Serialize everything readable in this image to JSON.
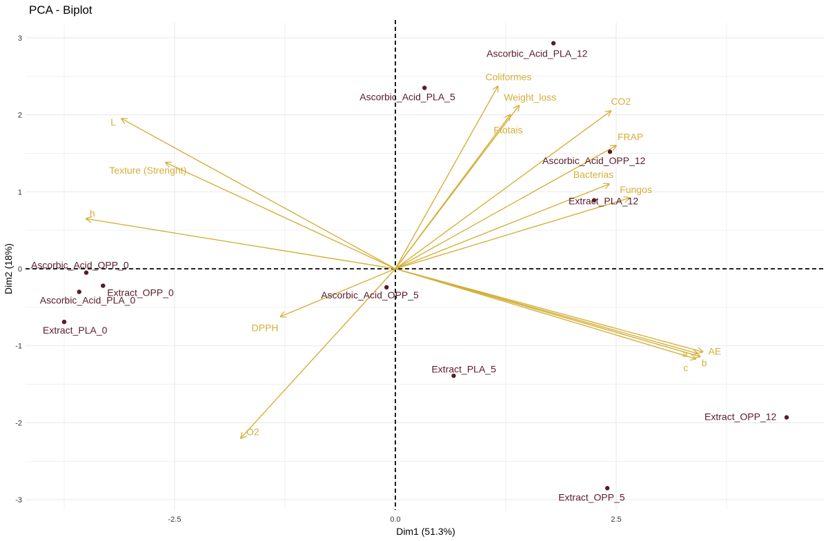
{
  "chart_data": {
    "type": "scatter",
    "title": "PCA - Biplot",
    "xlabel": "Dim1 (51.3%)",
    "ylabel": "Dim2 (18%)",
    "xlim": [
      -4.2,
      4.8
    ],
    "ylim": [
      -3.25,
      3.25
    ],
    "x_ticks": [
      -2.5,
      0,
      2.5
    ],
    "x_tick_labels": [
      "-2.5",
      "0.0",
      "2.5"
    ],
    "y_ticks": [
      -3,
      -2,
      -1,
      0,
      1,
      2,
      3
    ],
    "y_tick_labels": [
      "-3",
      "-2",
      "-1",
      "0",
      "1",
      "2",
      "3"
    ],
    "grid": true,
    "colors": {
      "individuals": "#5a1a2a",
      "variables": "#d4af37",
      "grid": "#ebebeb",
      "reference_lines": "#000000"
    },
    "individuals": [
      {
        "name": "Ascorbic_Acid_PLA_12",
        "x": 1.79,
        "y": 2.93
      },
      {
        "name": "Ascorbic_Acid_PLA_5",
        "x": 0.33,
        "y": 2.35
      },
      {
        "name": "Ascorbic_Acid_OPP_12",
        "x": 2.43,
        "y": 1.52
      },
      {
        "name": "Extract_PLA_12",
        "x": 2.25,
        "y": 0.89
      },
      {
        "name": "Ascorbic_Acid_OPP_0",
        "x": -3.5,
        "y": -0.05
      },
      {
        "name": "Extract_OPP_0",
        "x": -3.31,
        "y": -0.22
      },
      {
        "name": "Ascorbic_Acid_PLA_0",
        "x": -3.58,
        "y": -0.3
      },
      {
        "name": "Extract_PLA_0",
        "x": -3.75,
        "y": -0.69
      },
      {
        "name": "Ascorbic_Acid_OPP_5",
        "x": -0.1,
        "y": -0.24
      },
      {
        "name": "Extract_PLA_5",
        "x": 0.66,
        "y": -1.39
      },
      {
        "name": "Extract_OPP_12",
        "x": 4.43,
        "y": -1.93
      },
      {
        "name": "Extract_OPP_5",
        "x": 2.4,
        "y": -2.85
      }
    ],
    "variables": [
      {
        "name": "Coliformes",
        "x": 1.16,
        "y": 2.37
      },
      {
        "name": "Weight_loss",
        "x": 1.4,
        "y": 2.12
      },
      {
        "name": "Ftotais",
        "x": 1.3,
        "y": 2.0
      },
      {
        "name": "CO2",
        "x": 2.44,
        "y": 2.05
      },
      {
        "name": "FRAP",
        "x": 2.5,
        "y": 1.6
      },
      {
        "name": "Bacterias",
        "x": 2.42,
        "y": 1.1
      },
      {
        "name": "Fungos",
        "x": 2.65,
        "y": 0.92
      },
      {
        "name": "L",
        "x": -3.1,
        "y": 1.95
      },
      {
        "name": "Texture (Strenght)",
        "x": -2.6,
        "y": 1.38
      },
      {
        "name": "h",
        "x": -3.5,
        "y": 0.65
      },
      {
        "name": "DPPH",
        "x": -1.3,
        "y": -0.62
      },
      {
        "name": "O2",
        "x": -1.75,
        "y": -2.2
      },
      {
        "name": "a",
        "x": 3.42,
        "y": -1.1
      },
      {
        "name": "AE",
        "x": 3.48,
        "y": -1.08
      },
      {
        "name": "b",
        "x": 3.45,
        "y": -1.14
      },
      {
        "name": "c",
        "x": 3.4,
        "y": -1.17
      }
    ]
  }
}
